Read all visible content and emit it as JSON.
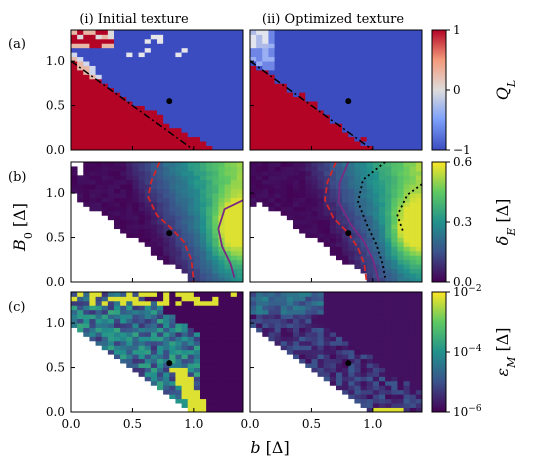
{
  "figure": {
    "column_titles": [
      "(i) Initial texture",
      "(ii) Optimized texture"
    ],
    "row_labels": [
      "(a)",
      "(b)",
      "(c)"
    ],
    "xlabel": "b [Δ]",
    "ylabel": "B0 [Δ]",
    "x_ticks": [
      "0.0",
      "0.5",
      "1.0"
    ],
    "y_ticks": [
      "0.0",
      "0.5",
      "1.0"
    ],
    "colors": {
      "ql_pos": "#b40426",
      "ql_neg": "#3b4cc0",
      "dashed_line": "#d62728",
      "solid_line": "#7b2a83",
      "dotted_line": "#000000",
      "marker": "#000000"
    }
  },
  "chart_data": [
    {
      "type": "heatmap",
      "id": "a-i",
      "row": "(a)",
      "column_title": "(i) Initial texture",
      "xlim": [
        0.0,
        1.4
      ],
      "ylim": [
        0.0,
        1.35
      ],
      "colorbar": {
        "label": "Q_L",
        "range": [
          -1,
          1
        ],
        "ticks": [
          "1",
          "0",
          "-1"
        ],
        "colormap": "coolwarm"
      },
      "boundary_line": {
        "style": "dashdot",
        "points": [
          [
            0.0,
            1.0
          ],
          [
            1.0,
            0.0
          ]
        ]
      },
      "marker": {
        "b": 0.8,
        "B0": 0.55
      }
    },
    {
      "type": "heatmap",
      "id": "a-ii",
      "row": "(a)",
      "column_title": "(ii) Optimized texture",
      "xlim": [
        0.0,
        1.4
      ],
      "ylim": [
        0.0,
        1.35
      ],
      "colorbar": {
        "label": "Q_L",
        "range": [
          -1,
          1
        ],
        "ticks": [
          "1",
          "0",
          "-1"
        ],
        "colormap": "coolwarm"
      },
      "boundary_line": {
        "style": "dashdot",
        "points": [
          [
            0.0,
            1.0
          ],
          [
            1.0,
            0.0
          ]
        ]
      },
      "marker": {
        "b": 0.8,
        "B0": 0.55
      }
    },
    {
      "type": "heatmap",
      "id": "b-i",
      "row": "(b)",
      "xlim": [
        0.0,
        1.4
      ],
      "ylim": [
        0.0,
        1.35
      ],
      "colorbar": {
        "label": "δ_E [Δ]",
        "range": [
          0.0,
          0.6
        ],
        "ticks": [
          "0.6",
          "0.3",
          "0.0"
        ],
        "colormap": "viridis"
      },
      "contours": [
        {
          "style": "dashed",
          "points": [
            [
              0.72,
              1.35
            ],
            [
              0.65,
              1.12
            ],
            [
              0.63,
              0.95
            ],
            [
              0.7,
              0.75
            ],
            [
              0.82,
              0.6
            ],
            [
              0.92,
              0.45
            ],
            [
              0.98,
              0.25
            ],
            [
              1.0,
              0.0
            ]
          ]
        },
        {
          "style": "solid",
          "points": [
            [
              1.4,
              0.92
            ],
            [
              1.25,
              0.82
            ],
            [
              1.2,
              0.6
            ],
            [
              1.23,
              0.4
            ],
            [
              1.3,
              0.2
            ],
            [
              1.33,
              0.05
            ]
          ]
        }
      ],
      "marker": {
        "b": 0.8,
        "B0": 0.55
      }
    },
    {
      "type": "heatmap",
      "id": "b-ii",
      "row": "(b)",
      "xlim": [
        0.0,
        1.4
      ],
      "ylim": [
        0.0,
        1.35
      ],
      "colorbar": {
        "label": "δ_E [Δ]",
        "range": [
          0.0,
          0.6
        ],
        "ticks": [
          "0.6",
          "0.3",
          "0.0"
        ],
        "colormap": "viridis"
      },
      "contours": [
        {
          "style": "dashed",
          "points": [
            [
              0.7,
              1.35
            ],
            [
              0.63,
              1.12
            ],
            [
              0.61,
              0.92
            ],
            [
              0.68,
              0.72
            ],
            [
              0.8,
              0.55
            ],
            [
              0.88,
              0.38
            ],
            [
              0.93,
              0.2
            ],
            [
              0.95,
              0.0
            ]
          ]
        },
        {
          "style": "solid",
          "points": [
            [
              0.8,
              1.35
            ],
            [
              0.73,
              1.12
            ],
            [
              0.72,
              0.9
            ],
            [
              0.82,
              0.65
            ],
            [
              0.93,
              0.45
            ],
            [
              1.0,
              0.25
            ],
            [
              1.05,
              0.0
            ]
          ]
        },
        {
          "style": "dotted",
          "points": [
            [
              1.1,
              1.35
            ],
            [
              0.92,
              1.15
            ],
            [
              0.88,
              0.9
            ],
            [
              0.95,
              0.65
            ],
            [
              1.03,
              0.42
            ],
            [
              1.08,
              0.2
            ],
            [
              1.1,
              0.05
            ]
          ]
        },
        {
          "style": "dotted",
          "points": [
            [
              1.4,
              1.1
            ],
            [
              1.28,
              0.98
            ],
            [
              1.2,
              0.75
            ],
            [
              1.25,
              0.55
            ]
          ]
        }
      ],
      "marker": {
        "b": 0.8,
        "B0": 0.55
      }
    },
    {
      "type": "heatmap",
      "id": "c-i",
      "row": "(c)",
      "xlim": [
        0.0,
        1.4
      ],
      "ylim": [
        0.0,
        1.35
      ],
      "colorbar": {
        "label": "ε_M [Δ]",
        "scale": "log",
        "range": [
          1e-06,
          0.01
        ],
        "ticks": [
          "10^-2",
          "10^-4",
          "10^-6"
        ],
        "colormap": "viridis"
      },
      "marker": {
        "b": 0.8,
        "B0": 0.55
      }
    },
    {
      "type": "heatmap",
      "id": "c-ii",
      "row": "(c)",
      "xlim": [
        0.0,
        1.4
      ],
      "ylim": [
        0.0,
        1.35
      ],
      "colorbar": {
        "label": "ε_M [Δ]",
        "scale": "log",
        "range": [
          1e-06,
          0.01
        ],
        "ticks": [
          "10^-2",
          "10^-4",
          "10^-6"
        ],
        "colormap": "viridis"
      },
      "marker": {
        "b": 0.8,
        "B0": 0.55
      }
    }
  ]
}
